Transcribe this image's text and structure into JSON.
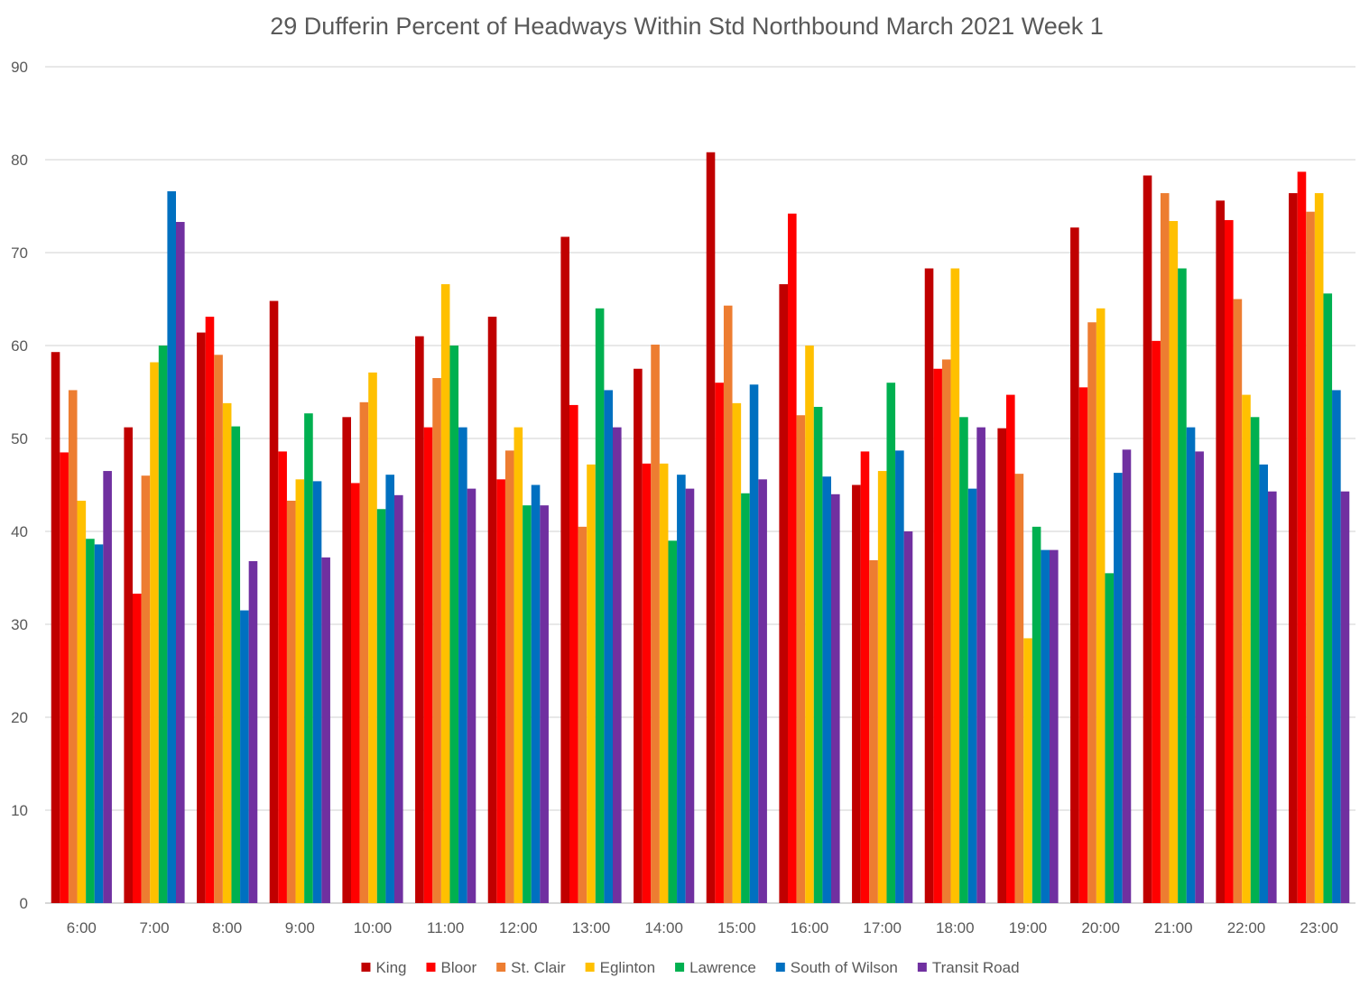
{
  "chart_data": {
    "type": "bar",
    "title": "29 Dufferin  Percent of Headways Within Std Northbound March 2021 Week 1",
    "xlabel": "",
    "ylabel": "",
    "ylim": [
      0,
      90
    ],
    "yticks": [
      0,
      10,
      20,
      30,
      40,
      50,
      60,
      70,
      80,
      90
    ],
    "grid": true,
    "legend_position": "bottom",
    "categories": [
      "6:00",
      "7:00",
      "8:00",
      "9:00",
      "10:00",
      "11:00",
      "12:00",
      "13:00",
      "14:00",
      "15:00",
      "16:00",
      "17:00",
      "18:00",
      "19:00",
      "20:00",
      "21:00",
      "22:00",
      "23:00"
    ],
    "series": [
      {
        "name": "King",
        "color": "#c00000",
        "values": [
          59.3,
          51.2,
          61.4,
          64.8,
          52.3,
          61.0,
          63.1,
          71.7,
          57.5,
          80.8,
          66.6,
          45.0,
          68.3,
          51.1,
          72.7,
          78.3,
          75.6,
          76.4
        ]
      },
      {
        "name": "Bloor",
        "color": "#ff0000",
        "values": [
          48.5,
          33.3,
          63.1,
          48.6,
          45.2,
          51.2,
          45.6,
          53.6,
          47.3,
          56.0,
          74.2,
          48.6,
          57.5,
          54.7,
          55.5,
          60.5,
          73.5,
          78.7
        ]
      },
      {
        "name": "St. Clair",
        "color": "#ed7d31",
        "values": [
          55.2,
          46.0,
          59.0,
          43.3,
          53.9,
          56.5,
          48.7,
          40.5,
          60.1,
          64.3,
          52.5,
          36.9,
          58.5,
          46.2,
          62.5,
          76.4,
          65.0,
          74.4
        ]
      },
      {
        "name": "Eglinton",
        "color": "#ffc000",
        "values": [
          43.3,
          58.2,
          53.8,
          45.6,
          57.1,
          66.6,
          51.2,
          47.2,
          47.3,
          53.8,
          60.0,
          46.5,
          68.3,
          28.5,
          64.0,
          73.4,
          54.7,
          76.4
        ]
      },
      {
        "name": "Lawrence",
        "color": "#00b050",
        "values": [
          39.2,
          60.0,
          51.3,
          52.7,
          42.4,
          60.0,
          42.8,
          64.0,
          39.0,
          44.1,
          53.4,
          56.0,
          52.3,
          40.5,
          35.5,
          68.3,
          52.3,
          65.6
        ]
      },
      {
        "name": "South of Wilson",
        "color": "#0070c0",
        "values": [
          38.6,
          76.6,
          31.5,
          45.4,
          46.1,
          51.2,
          45.0,
          55.2,
          46.1,
          55.8,
          45.9,
          48.7,
          44.6,
          38.0,
          46.3,
          51.2,
          47.2,
          55.2
        ]
      },
      {
        "name": "Transit Road",
        "color": "#7030a0",
        "values": [
          46.5,
          73.3,
          36.8,
          37.2,
          43.9,
          44.6,
          42.8,
          51.2,
          44.6,
          45.6,
          44.0,
          40.0,
          51.2,
          38.0,
          48.8,
          48.6,
          44.3,
          44.3
        ]
      }
    ]
  }
}
